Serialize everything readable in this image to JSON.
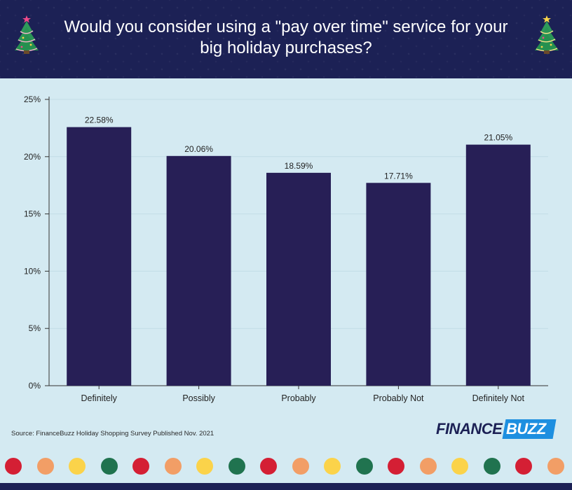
{
  "header": {
    "title": "Would you consider using a \"pay over time\" service for your big holiday purchases?"
  },
  "colors": {
    "header_bg": "#1c2155",
    "chart_bg": "#d4eaf2",
    "bar": "#271f56",
    "logo_accent": "#1d8fe0",
    "dot_palette": [
      "#d41f34",
      "#f29e66",
      "#fbd34a",
      "#20734f"
    ]
  },
  "chart_data": {
    "type": "bar",
    "categories": [
      "Definitely",
      "Possibly",
      "Probably",
      "Probably Not",
      "Definitely Not"
    ],
    "values": [
      22.58,
      20.06,
      18.59,
      17.71,
      21.05
    ],
    "data_labels": [
      "22.58%",
      "20.06%",
      "18.59%",
      "17.71%",
      "21.05%"
    ],
    "yticks": [
      0,
      5,
      10,
      15,
      20,
      25
    ],
    "ytick_labels": [
      "0%",
      "5%",
      "10%",
      "15%",
      "20%",
      "25%"
    ],
    "ylim": [
      0,
      25
    ],
    "grid": true
  },
  "footer": {
    "source": "Source: FinanceBuzz Holiday Shopping Survey Published Nov. 2021",
    "logo_left": "FINANCE",
    "logo_right": "BUZZ",
    "decor_icon": "christmas-tree-icon"
  }
}
